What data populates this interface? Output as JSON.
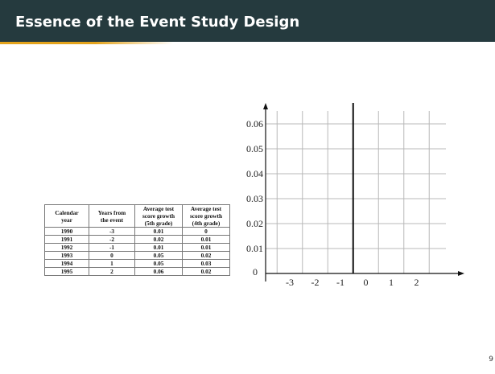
{
  "slide": {
    "title": "Essence of the Event Study Design",
    "page_number": "9",
    "header_color": "#253a3e",
    "accent_color": "#e3a31c"
  },
  "table": {
    "headers": [
      [
        "Calendar",
        "year"
      ],
      [
        "Years from",
        "the event"
      ],
      [
        "Average test",
        "score growth",
        "(5th grade)"
      ],
      [
        "Average test",
        "score growth",
        "(4th grade)"
      ]
    ],
    "rows": [
      [
        "1990",
        "-3",
        "0.01",
        "0"
      ],
      [
        "1991",
        "-2",
        "0.02",
        "0.01"
      ],
      [
        "1992",
        "-1",
        "0.01",
        "0.01"
      ],
      [
        "1993",
        "0",
        "0.05",
        "0.02"
      ],
      [
        "1994",
        "1",
        "0.05",
        "0.03"
      ],
      [
        "1995",
        "2",
        "0.06",
        "0.02"
      ]
    ]
  },
  "chart_data": {
    "type": "scatter",
    "title": "",
    "xlabel": "",
    "ylabel": "",
    "x_ticks": [
      "-3",
      "-2",
      "-1",
      "0",
      "1",
      "2"
    ],
    "y_ticks": [
      "0",
      "0.01",
      "0.02",
      "0.03",
      "0.04",
      "0.05",
      "0.06"
    ],
    "xlim": [
      -3,
      2
    ],
    "ylim": [
      0,
      0.06
    ],
    "grid": true,
    "event_line_x": -0.5,
    "series": []
  }
}
